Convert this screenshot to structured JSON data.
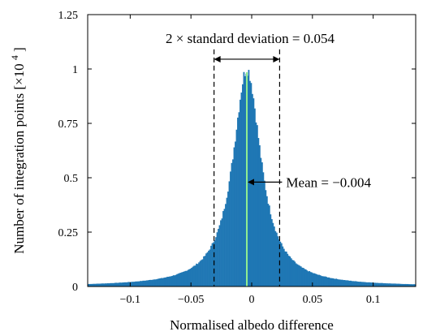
{
  "chart_data": {
    "type": "bar",
    "subtype": "histogram",
    "xlabel": "Normalised albedo difference",
    "ylabel": "Number of integration points",
    "ylabel_multiplier": "[×10",
    "ylabel_exponent": "4",
    "ylabel_close": "]",
    "xlim": [
      -0.135,
      0.135
    ],
    "ylim": [
      0,
      1.25
    ],
    "x_ticks": [
      -0.1,
      -0.05,
      0,
      0.05,
      0.1
    ],
    "x_tick_labels": [
      "−0.1",
      "−0.05",
      "0",
      "0.05",
      "0.1"
    ],
    "y_ticks": [
      0,
      0.25,
      0.5,
      0.75,
      1,
      1.25
    ],
    "y_tick_labels": [
      "0",
      "0.25",
      "0.5",
      "0.75",
      "1",
      "1.25"
    ],
    "grid": false,
    "legend": "none",
    "distribution": {
      "mean": -0.004,
      "peak_count": 1.0,
      "half_width_at_half_max": 0.014,
      "bin_width": 0.001
    },
    "bar_color": "#1f77b4",
    "mean_line_color": "#90ee90",
    "std_range": [
      -0.031,
      0.023
    ],
    "annotations": {
      "std_label": "2 × standard deviation = 0.054",
      "mean_label": "Mean = −0.004"
    }
  }
}
